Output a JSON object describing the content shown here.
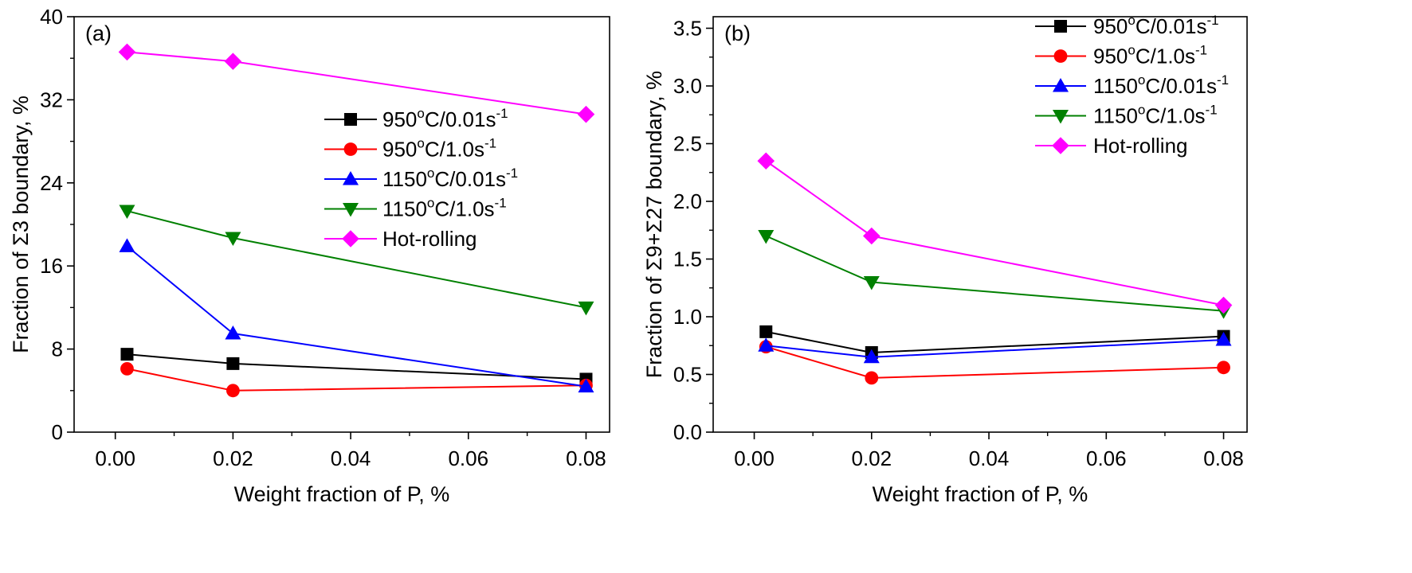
{
  "chart_data": [
    {
      "type": "line",
      "panel_label": "(a)",
      "xlabel": "Weight fraction of P, %",
      "ylabel": "Fraction of Σ3 boundary, %",
      "xlim": [
        -0.007,
        0.084
      ],
      "ylim": [
        0,
        40
      ],
      "xticks": [
        0.0,
        0.02,
        0.04,
        0.06,
        0.08
      ],
      "xtick_labels": [
        "0.00",
        "0.02",
        "0.04",
        "0.06",
        "0.08"
      ],
      "yticks": [
        0,
        8,
        16,
        24,
        32,
        40
      ],
      "ytick_labels": [
        "0",
        "8",
        "16",
        "24",
        "32",
        "40"
      ],
      "x": [
        0.002,
        0.02,
        0.08
      ],
      "legend_position": "center-right",
      "series": [
        {
          "name": "950°C/0.01s⁻¹",
          "base": "950",
          "sup": "o",
          "mid": "C/0.01s",
          "sup2": "-1",
          "color": "#000000",
          "marker": "square",
          "values": [
            7.5,
            6.6,
            5.1
          ]
        },
        {
          "name": "950°C/1.0s⁻¹",
          "base": "950",
          "sup": "o",
          "mid": "C/1.0s",
          "sup2": "-1",
          "color": "#ff0000",
          "marker": "circle",
          "values": [
            6.1,
            4.0,
            4.5
          ]
        },
        {
          "name": "1150°C/0.01s⁻¹",
          "base": "1150",
          "sup": "o",
          "mid": "C/0.01s",
          "sup2": "-1",
          "color": "#0000ff",
          "marker": "triangle-up",
          "values": [
            17.9,
            9.5,
            4.4
          ]
        },
        {
          "name": "1150°C/1.0s⁻¹",
          "base": "1150",
          "sup": "o",
          "mid": "C/1.0s",
          "sup2": "-1",
          "color": "#008000",
          "marker": "triangle-down",
          "values": [
            21.3,
            18.7,
            12.0
          ]
        },
        {
          "name": "Hot-rolling",
          "base": "Hot-rolling",
          "sup": "",
          "mid": "",
          "sup2": "",
          "color": "#ff00ff",
          "marker": "diamond",
          "values": [
            36.6,
            35.7,
            30.6
          ]
        }
      ]
    },
    {
      "type": "line",
      "panel_label": "(b)",
      "xlabel": "Weight fraction of P, %",
      "ylabel": "Fraction of Σ9+Σ27 boundary, %",
      "xlim": [
        -0.007,
        0.084
      ],
      "ylim": [
        0,
        3.6
      ],
      "xticks": [
        0.0,
        0.02,
        0.04,
        0.06,
        0.08
      ],
      "xtick_labels": [
        "0.00",
        "0.02",
        "0.04",
        "0.06",
        "0.08"
      ],
      "yticks": [
        0,
        0.5,
        1.0,
        1.5,
        2.0,
        2.5,
        3.0,
        3.5
      ],
      "ytick_labels": [
        "0.0",
        "0.5",
        "1.0",
        "1.5",
        "2.0",
        "2.5",
        "3.0",
        "3.5"
      ],
      "x": [
        0.002,
        0.02,
        0.08
      ],
      "legend_position": "top-right",
      "series": [
        {
          "name": "950°C/0.01s⁻¹",
          "base": "950",
          "sup": "o",
          "mid": "C/0.01s",
          "sup2": "-1",
          "color": "#000000",
          "marker": "square",
          "values": [
            0.87,
            0.69,
            0.83
          ]
        },
        {
          "name": "950°C/1.0s⁻¹",
          "base": "950",
          "sup": "o",
          "mid": "C/1.0s",
          "sup2": "-1",
          "color": "#ff0000",
          "marker": "circle",
          "values": [
            0.74,
            0.47,
            0.56
          ]
        },
        {
          "name": "1150°C/0.01s⁻¹",
          "base": "1150",
          "sup": "o",
          "mid": "C/0.01s",
          "sup2": "-1",
          "color": "#0000ff",
          "marker": "triangle-up",
          "values": [
            0.75,
            0.65,
            0.8
          ]
        },
        {
          "name": "1150°C/1.0s⁻¹",
          "base": "1150",
          "sup": "o",
          "mid": "C/1.0s",
          "sup2": "-1",
          "color": "#008000",
          "marker": "triangle-down",
          "values": [
            1.7,
            1.3,
            1.05
          ]
        },
        {
          "name": "Hot-rolling",
          "base": "Hot-rolling",
          "sup": "",
          "mid": "",
          "sup2": "",
          "color": "#ff00ff",
          "marker": "diamond",
          "values": [
            2.35,
            1.7,
            1.1
          ]
        }
      ]
    }
  ]
}
